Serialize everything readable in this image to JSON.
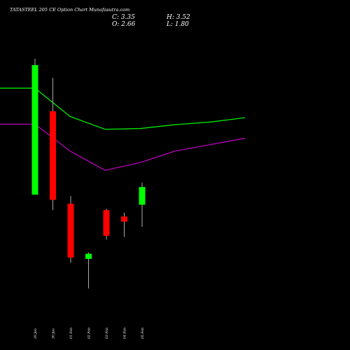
{
  "chart_data": {
    "type": "candlestick",
    "title": "TATASTEEL 205 CE Option  Chart Munafasutra.com",
    "ohlc_readout": {
      "c": "C: 3.35",
      "h": "H: 3.52",
      "o": "O: 2.66",
      "l": "L: 1.80"
    },
    "categories": [
      "29 Jan",
      "30 Jan",
      "01 Feb",
      "02 Feb",
      "03 Feb",
      "04 Feb",
      "05 Feb"
    ],
    "candles": [
      {
        "date": "29 Jan",
        "open": 3.05,
        "high": 8.35,
        "low": 3.05,
        "close": 8.1
      },
      {
        "date": "30 Jan",
        "open": 6.3,
        "high": 7.6,
        "low": 2.45,
        "close": 2.85
      },
      {
        "date": "01 Feb",
        "open": 2.7,
        "high": 3.0,
        "low": 0.4,
        "close": 0.6
      },
      {
        "date": "02 Feb",
        "open": 0.55,
        "high": 0.8,
        "low": -0.6,
        "close": 0.75
      },
      {
        "date": "03 Feb",
        "open": 2.45,
        "high": 2.5,
        "low": 1.3,
        "close": 1.45
      },
      {
        "date": "04 Feb",
        "open": 2.2,
        "high": 2.35,
        "low": 1.4,
        "close": 2.0
      },
      {
        "date": "05 Feb",
        "open": 2.66,
        "high": 3.52,
        "low": 1.8,
        "close": 3.35
      }
    ],
    "ylim": [
      -1.5,
      9.0
    ],
    "overlay_series": [
      {
        "color": "#00ff00",
        "values": [
          7.2,
          7.2,
          6.1,
          5.6,
          5.63,
          5.78,
          5.88,
          6.05
        ]
      },
      {
        "color": "#cc00cc",
        "values": [
          5.8,
          5.8,
          4.75,
          4.0,
          4.3,
          4.75,
          5.0,
          5.25
        ]
      }
    ],
    "colors": {
      "up": "#00ff00",
      "down": "#ff0000",
      "background": "#000000",
      "wick": "#aaaaaa"
    },
    "grid": false
  }
}
